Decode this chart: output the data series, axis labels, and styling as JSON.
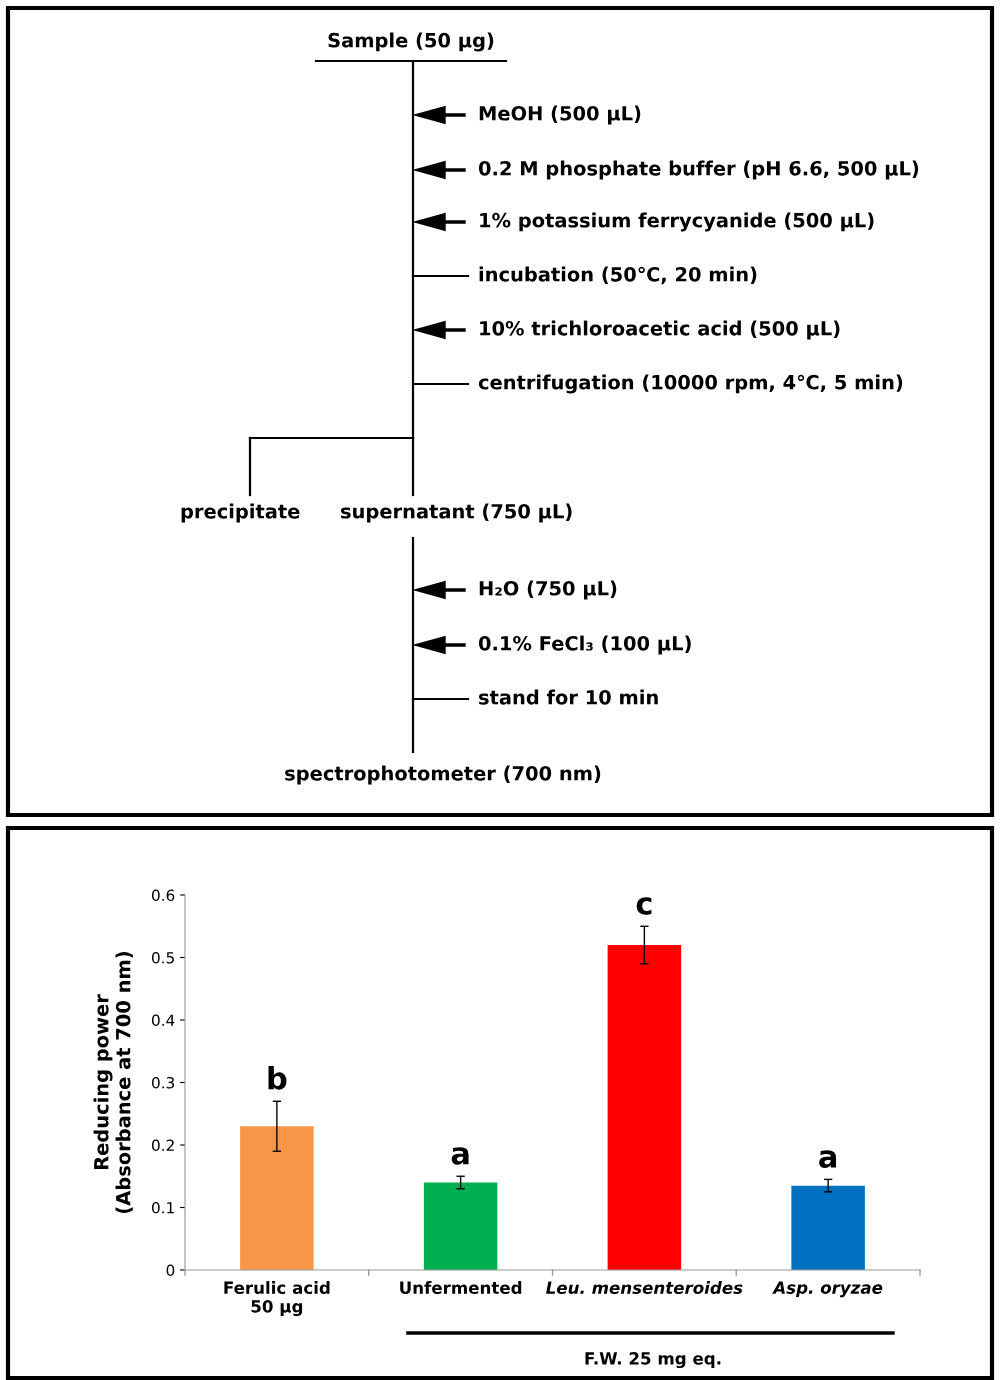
{
  "chart_data": [
    {
      "type": "other",
      "annotations": [
        "Sample (50 µg)",
        "MeOH (500 µL)",
        "0.2 M phosphate buffer (pH 6.6, 500 µL)",
        "1% potassium ferrycyanide (500 µL)",
        "incubation (50℃, 20 min)",
        "10% trichloroacetic acid (500 µL)",
        "centrifugation (10000 rpm, 4℃, 5 min)",
        "precipitate",
        "supernatant (750 µL)",
        "H₂O (750 µL)",
        "0.1% FeCl₃ (100 µL)",
        "stand for 10 min",
        "spectrophotometer (700 nm)"
      ]
    },
    {
      "type": "bar",
      "ylabel": "Reducing power\n(Absorbance at 700 nm)",
      "categories": [
        "Ferulic acid\n50 µg",
        "Unfermented",
        "Leu. mensenteroides",
        "Asp. oryzae"
      ],
      "values": [
        0.23,
        0.14,
        0.52,
        0.135
      ],
      "colors": [
        "#f79646",
        "#00b050",
        "#ff0000",
        "#0070c0"
      ],
      "errors": [
        0.04,
        0.01,
        0.03,
        0.01
      ],
      "ylim": [
        0,
        0.6
      ],
      "yticks": [
        0,
        0.1,
        0.2,
        0.3,
        0.4,
        0.5,
        0.6
      ],
      "grid": false,
      "legend": false,
      "annotations": [
        {
          "text": "b",
          "x": "Ferulic acid\n50 µg",
          "y": 0.27
        },
        {
          "text": "a",
          "x": "Unfermented",
          "y": 0.15
        },
        {
          "text": "c",
          "x": "Leu. mensenteroides",
          "y": 0.55
        },
        {
          "text": "a",
          "x": "Asp. oryzae",
          "y": 0.145
        },
        "F.W. 25 mg eq."
      ]
    }
  ]
}
